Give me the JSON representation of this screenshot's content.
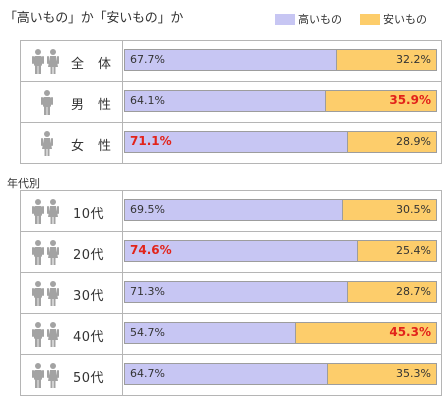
{
  "title": "「高いもの」か「安いもの」か",
  "legend": {
    "high": "高いもの",
    "low": "安いもの"
  },
  "colors": {
    "high": "#c7c6f3",
    "low": "#fdcd6b",
    "emphasis": "#e2231a"
  },
  "section_age_label": "年代別",
  "chart_data": {
    "type": "bar",
    "stacked": true,
    "orientation": "horizontal",
    "title": "「高いもの」か「安いもの」か",
    "legend": "top-right",
    "xlim": [
      0,
      100
    ],
    "groups": [
      {
        "label": "",
        "rows": [
          {
            "label": "全　体",
            "icon": "couple-icon",
            "high": 67.7,
            "low": 32.2,
            "high_text": "67.7%",
            "low_text": "32.2%",
            "emphasis": "none"
          },
          {
            "label": "男　性",
            "icon": "male-icon",
            "high": 64.1,
            "low": 35.9,
            "high_text": "64.1%",
            "low_text": "35.9%",
            "emphasis": "low"
          },
          {
            "label": "女　性",
            "icon": "female-icon",
            "high": 71.1,
            "low": 28.9,
            "high_text": "71.1%",
            "low_text": "28.9%",
            "emphasis": "high"
          }
        ]
      },
      {
        "label": "年代別",
        "rows": [
          {
            "label": "10代",
            "icon": "couple-icon",
            "high": 69.5,
            "low": 30.5,
            "high_text": "69.5%",
            "low_text": "30.5%",
            "emphasis": "none"
          },
          {
            "label": "20代",
            "icon": "couple-icon",
            "high": 74.6,
            "low": 25.4,
            "high_text": "74.6%",
            "low_text": "25.4%",
            "emphasis": "high"
          },
          {
            "label": "30代",
            "icon": "couple-icon",
            "high": 71.3,
            "low": 28.7,
            "high_text": "71.3%",
            "low_text": "28.7%",
            "emphasis": "none"
          },
          {
            "label": "40代",
            "icon": "couple-icon",
            "high": 54.7,
            "low": 45.3,
            "high_text": "54.7%",
            "low_text": "45.3%",
            "emphasis": "low"
          },
          {
            "label": "50代",
            "icon": "couple-icon",
            "high": 64.7,
            "low": 35.3,
            "high_text": "64.7%",
            "low_text": "35.3%",
            "emphasis": "none"
          }
        ]
      }
    ]
  }
}
